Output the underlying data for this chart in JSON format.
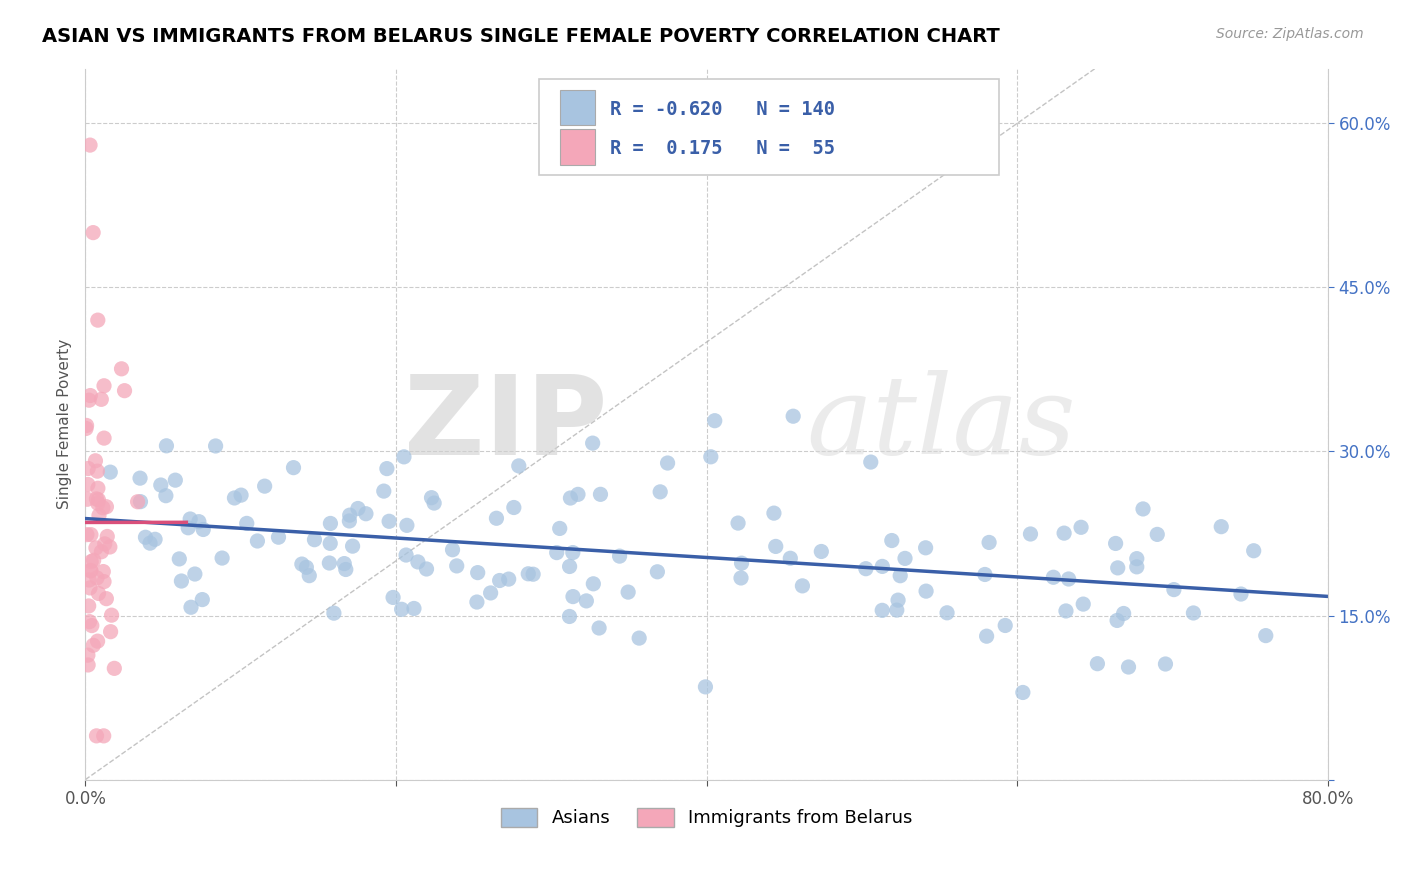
{
  "title": "ASIAN VS IMMIGRANTS FROM BELARUS SINGLE FEMALE POVERTY CORRELATION CHART",
  "source": "Source: ZipAtlas.com",
  "ylabel": "Single Female Poverty",
  "xlim": [
    0.0,
    0.8
  ],
  "ylim": [
    0.0,
    0.65
  ],
  "xticks": [
    0.0,
    0.2,
    0.4,
    0.6,
    0.8
  ],
  "xtick_labels": [
    "0.0%",
    "",
    "",
    "",
    "80.0%"
  ],
  "ytick_right_labels": [
    "",
    "15.0%",
    "30.0%",
    "45.0%",
    "60.0%"
  ],
  "yticks": [
    0.0,
    0.15,
    0.3,
    0.45,
    0.6
  ],
  "asian_color": "#a8c4e0",
  "belarus_color": "#f4a7b9",
  "asian_line_color": "#3a5fa8",
  "belarus_line_color": "#d94f7a",
  "R_asian": -0.62,
  "N_asian": 140,
  "R_belarus": 0.175,
  "N_belarus": 55,
  "legend_label_asian": "Asians",
  "legend_label_belarus": "Immigrants from Belarus",
  "watermark_zip": "ZIP",
  "watermark_atlas": "atlas",
  "title_fontsize": 14,
  "axis_label_fontsize": 11,
  "tick_fontsize": 12,
  "background_color": "#ffffff",
  "grid_color": "#cccccc"
}
